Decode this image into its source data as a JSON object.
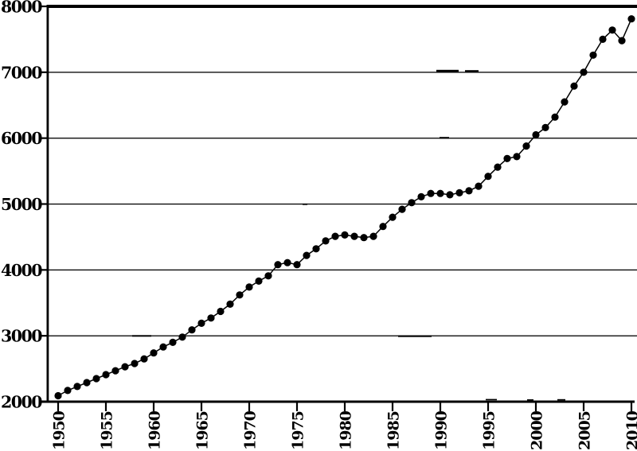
{
  "figure": {
    "background": "#ffffff",
    "ink_color": "#000000",
    "title": "",
    "frame": "scanned black-and-white line chart, no title, no legend"
  },
  "chart_data": {
    "type": "line",
    "marker": "filled-circle",
    "title": "",
    "xlabel": "",
    "ylabel": "",
    "legend": "none",
    "grid": "horizontal gridlines every 1000",
    "xlim": [
      1950,
      2010
    ],
    "ylim": [
      2000,
      8000
    ],
    "ytick_values": [
      2000,
      3000,
      4000,
      5000,
      6000,
      7000,
      8000
    ],
    "ytick_labels": [
      "2000",
      "3000",
      "4000",
      "5000",
      "6000",
      "7000",
      "8000"
    ],
    "xtick_values": [
      1950,
      1955,
      1960,
      1965,
      1970,
      1975,
      1980,
      1985,
      1990,
      1995,
      2000,
      2005,
      2010
    ],
    "xtick_labels": [
      "1950",
      "1955",
      "1960",
      "1965",
      "1970",
      "1975",
      "1980",
      "1985",
      "1990",
      "1995",
      "2000",
      "2005",
      "2010"
    ],
    "x": [
      1950,
      1951,
      1952,
      1953,
      1954,
      1955,
      1956,
      1957,
      1958,
      1959,
      1960,
      1961,
      1962,
      1963,
      1964,
      1965,
      1966,
      1967,
      1968,
      1969,
      1970,
      1971,
      1972,
      1973,
      1974,
      1975,
      1976,
      1977,
      1978,
      1979,
      1980,
      1981,
      1982,
      1983,
      1984,
      1985,
      1986,
      1987,
      1988,
      1989,
      1990,
      1991,
      1992,
      1993,
      1994,
      1995,
      1996,
      1997,
      1998,
      1999,
      2000,
      2001,
      2002,
      2003,
      2004,
      2005,
      2006,
      2007,
      2008,
      2009,
      2010
    ],
    "values": [
      2090,
      2170,
      2230,
      2290,
      2350,
      2410,
      2470,
      2530,
      2580,
      2650,
      2740,
      2830,
      2900,
      2980,
      3090,
      3190,
      3270,
      3370,
      3480,
      3620,
      3740,
      3830,
      3910,
      4080,
      4110,
      4080,
      4220,
      4320,
      4440,
      4510,
      4530,
      4510,
      4490,
      4510,
      4660,
      4800,
      4920,
      5020,
      5110,
      5160,
      5160,
      5140,
      5170,
      5200,
      5270,
      5420,
      5560,
      5690,
      5720,
      5880,
      6050,
      6160,
      6320,
      6550,
      6790,
      7000,
      7260,
      7500,
      7640,
      7480,
      7810
    ]
  }
}
